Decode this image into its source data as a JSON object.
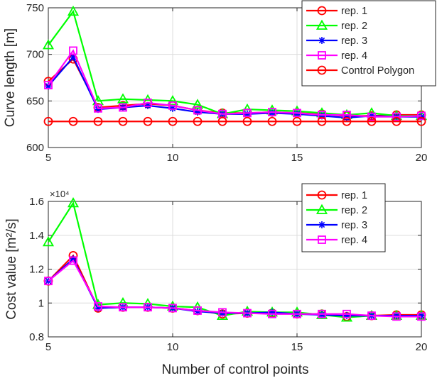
{
  "figure": {
    "xlabel": "Number of control points"
  },
  "colors": {
    "rep1": "#ff0000",
    "rep2": "#00ff00",
    "rep3": "#0000ff",
    "rep4": "#ff00ff",
    "control_polygon": "#ff0000",
    "axes": "#262626",
    "grid": "#dcdcdc"
  },
  "chart_data": [
    {
      "type": "line",
      "ylabel": "Curve length [m]",
      "xlabel": "",
      "xlim": [
        5,
        20
      ],
      "ylim": [
        600,
        750
      ],
      "xticks": [
        5,
        10,
        15,
        20
      ],
      "yticks": [
        600,
        650,
        700,
        750
      ],
      "grid": true,
      "legend_position": "top-right",
      "x": [
        5,
        6,
        7,
        8,
        9,
        10,
        11,
        12,
        13,
        14,
        15,
        16,
        17,
        18,
        19,
        20
      ],
      "series": [
        {
          "name": "rep. 1",
          "marker": "circle",
          "color": "#ff0000",
          "values": [
            671,
            695,
            643,
            645,
            647,
            645,
            640,
            637,
            637,
            638,
            637,
            636,
            634,
            634,
            635,
            635
          ]
        },
        {
          "name": "rep. 2",
          "marker": "triangle",
          "color": "#00ff00",
          "values": [
            710,
            746,
            650,
            652,
            651,
            650,
            646,
            636,
            641,
            640,
            639,
            637,
            635,
            637,
            634,
            634
          ]
        },
        {
          "name": "rep. 3",
          "marker": "asterisk",
          "color": "#0000ff",
          "values": [
            666,
            697,
            641,
            643,
            645,
            642,
            638,
            636,
            636,
            637,
            636,
            634,
            632,
            634,
            633,
            633
          ]
        },
        {
          "name": "rep. 4",
          "marker": "square",
          "color": "#ff00ff",
          "values": [
            667,
            704,
            642,
            643,
            648,
            645,
            640,
            636,
            637,
            638,
            637,
            635,
            635,
            633,
            633,
            634
          ]
        },
        {
          "name": "Control Polygon",
          "marker": "circle",
          "color": "#ff0000",
          "values": [
            628,
            628,
            628,
            628,
            628,
            628,
            628,
            628,
            628,
            628,
            628,
            628,
            628,
            628,
            628,
            628
          ]
        }
      ]
    },
    {
      "type": "line",
      "ylabel": "Cost value [m²/s]",
      "xlabel": "Number of control points",
      "xlim": [
        5,
        20
      ],
      "ylim": [
        0.8,
        1.6
      ],
      "y_scale_factor": "×10⁴",
      "xticks": [
        5,
        10,
        15,
        20
      ],
      "yticks": [
        0.8,
        1,
        1.2,
        1.4,
        1.6
      ],
      "grid": true,
      "legend_position": "top-right",
      "x": [
        5,
        6,
        7,
        8,
        9,
        10,
        11,
        12,
        13,
        14,
        15,
        16,
        17,
        18,
        19,
        20
      ],
      "series": [
        {
          "name": "rep. 1",
          "marker": "circle",
          "color": "#ff0000",
          "values": [
            1.13,
            1.28,
            0.97,
            0.975,
            0.975,
            0.97,
            0.955,
            0.935,
            0.94,
            0.94,
            0.935,
            0.935,
            0.92,
            0.925,
            0.93,
            0.93
          ]
        },
        {
          "name": "rep. 2",
          "marker": "triangle",
          "color": "#00ff00",
          "values": [
            1.36,
            1.59,
            0.99,
            1.0,
            0.995,
            0.98,
            0.975,
            0.925,
            0.95,
            0.945,
            0.945,
            0.93,
            0.915,
            0.925,
            0.925,
            0.925
          ]
        },
        {
          "name": "rep. 3",
          "marker": "asterisk",
          "color": "#0000ff",
          "values": [
            1.13,
            1.26,
            0.97,
            0.975,
            0.975,
            0.97,
            0.95,
            0.94,
            0.94,
            0.945,
            0.935,
            0.93,
            0.925,
            0.925,
            0.925,
            0.925
          ]
        },
        {
          "name": "rep. 4",
          "marker": "square",
          "color": "#ff00ff",
          "values": [
            1.13,
            1.25,
            0.98,
            0.975,
            0.975,
            0.97,
            0.955,
            0.945,
            0.94,
            0.935,
            0.935,
            0.935,
            0.935,
            0.925,
            0.92,
            0.92
          ]
        }
      ]
    }
  ]
}
